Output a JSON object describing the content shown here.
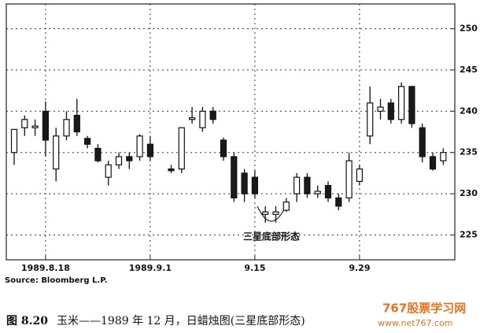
{
  "chart_data": {
    "type": "candlestick",
    "categories": [
      null,
      null,
      null,
      "1989.8.18",
      null,
      null,
      null,
      null,
      null,
      null,
      null,
      null,
      null,
      "1989.9.1",
      null,
      null,
      null,
      null,
      null,
      null,
      null,
      null,
      null,
      "9.15",
      null,
      null,
      null,
      null,
      null,
      null,
      null,
      null,
      null,
      "9.29",
      null,
      null,
      null,
      null,
      null,
      null,
      null,
      null
    ],
    "open": [
      235,
      238,
      238,
      240,
      233,
      237,
      239.5,
      236.7,
      235.5,
      232,
      233.5,
      234.5,
      234.5,
      236,
      null,
      233,
      233,
      239,
      238,
      240,
      236.5,
      234.5,
      232.5,
      232,
      227.5,
      227.5,
      228,
      230,
      232,
      230,
      231,
      229.5,
      229.5,
      231.5,
      237,
      240,
      241,
      239,
      243,
      238,
      234.5,
      234
    ],
    "close": [
      237.8,
      239,
      238.2,
      236.5,
      237,
      239,
      237.5,
      236,
      234,
      233.5,
      234.5,
      234,
      237,
      234.5,
      null,
      232.8,
      238,
      239.2,
      240,
      239,
      234.5,
      229.5,
      230,
      230,
      227.8,
      227.8,
      229,
      232,
      230,
      230.3,
      229.5,
      228.5,
      234,
      233,
      241,
      240.5,
      239,
      243,
      238.5,
      234.5,
      233,
      235
    ],
    "high": [
      237.8,
      239.5,
      239,
      241.2,
      238,
      240,
      241.5,
      237,
      236,
      234,
      235,
      235,
      237.2,
      237,
      null,
      233.5,
      238,
      240.5,
      240.5,
      240.5,
      236.8,
      235,
      233,
      232.8,
      228.5,
      228.5,
      229.5,
      232.5,
      232.5,
      231,
      231.5,
      230,
      235,
      233.5,
      243,
      241.5,
      241.5,
      243.5,
      243,
      238.5,
      235,
      235.5
    ],
    "low": [
      233.5,
      237,
      237,
      234.5,
      231.5,
      236.5,
      237,
      235.5,
      233.8,
      231,
      233,
      233,
      234,
      234,
      null,
      232.5,
      232.5,
      238.5,
      237.5,
      238.5,
      234,
      229,
      229,
      229.5,
      226.5,
      226.5,
      227.8,
      229,
      229.5,
      229.5,
      229,
      228,
      229,
      231,
      236,
      239,
      238.5,
      238.5,
      238,
      233.8,
      232.8,
      233.5
    ],
    "up_color": "#ffffff",
    "down_color": "#1a1a1a",
    "ylim": [
      222,
      253
    ],
    "yticks": [
      225,
      230,
      235,
      240,
      245,
      250
    ],
    "grid": true,
    "annotation": "三星底部形态",
    "source": "Source: Bloomberg L.P."
  },
  "caption": {
    "label": "图 8.20",
    "text": "玉米——1989 年 12 月，日蜡烛图(三星底部形态)"
  },
  "watermark": {
    "name": "767股票学习网",
    "url": "www.net767.com"
  }
}
